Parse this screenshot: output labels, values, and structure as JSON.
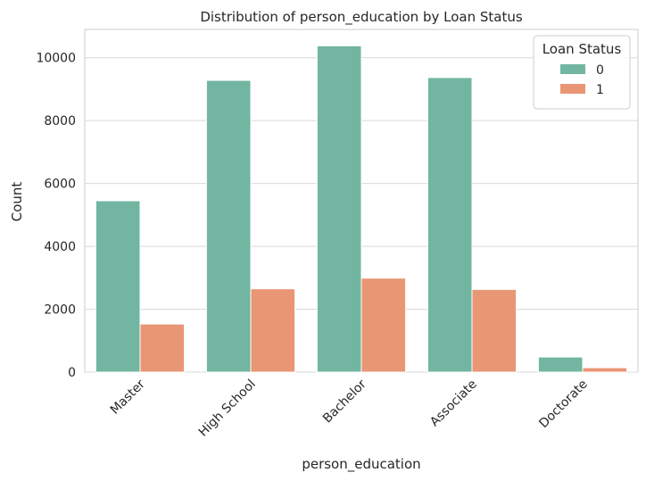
{
  "chart_data": {
    "type": "bar",
    "title": "Distribution of person_education by Loan Status",
    "xlabel": "person_education",
    "ylabel": "Count",
    "categories": [
      "Master",
      "High School",
      "Bachelor",
      "Associate",
      "Doctorate"
    ],
    "series": [
      {
        "name": "0",
        "values": [
          5450,
          9280,
          10380,
          9370,
          480
        ],
        "color": "#72b6a1"
      },
      {
        "name": "1",
        "values": [
          1530,
          2650,
          2990,
          2630,
          140
        ],
        "color": "#e99675"
      }
    ],
    "ylim": [
      0,
      10900
    ],
    "yticks": [
      0,
      2000,
      4000,
      6000,
      8000,
      10000
    ],
    "ytick_labels": [
      "0",
      "2000",
      "4000",
      "6000",
      "8000",
      "10000"
    ],
    "legend": {
      "title": "Loan Status",
      "placement": "top-right"
    },
    "grid": "horizontal",
    "xtick_rotation": 45
  }
}
